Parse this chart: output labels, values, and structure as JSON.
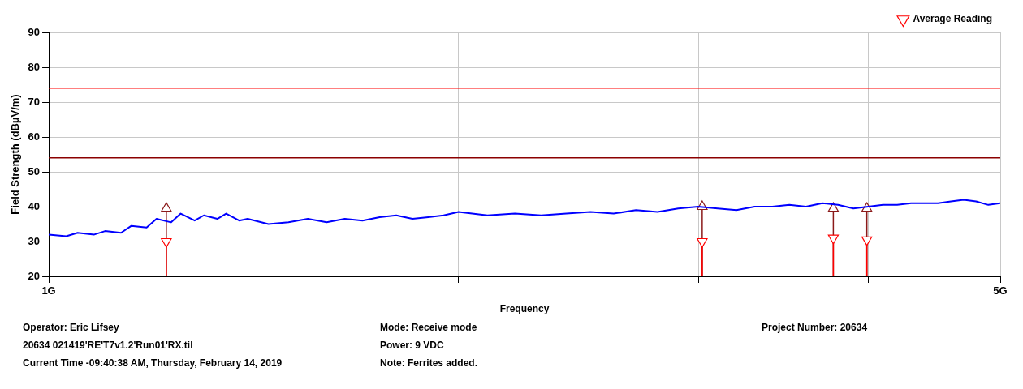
{
  "chart_data": {
    "type": "line",
    "xlabel": "Frequency",
    "ylabel": "Field Strength (dBµV/m)",
    "x": [
      1.0,
      1.03,
      1.05,
      1.08,
      1.1,
      1.13,
      1.15,
      1.18,
      1.2,
      1.23,
      1.25,
      1.28,
      1.3,
      1.33,
      1.35,
      1.38,
      1.4,
      1.45,
      1.5,
      1.55,
      1.6,
      1.65,
      1.7,
      1.75,
      1.8,
      1.85,
      1.9,
      1.95,
      2.0,
      2.1,
      2.2,
      2.3,
      2.4,
      2.5,
      2.6,
      2.7,
      2.8,
      2.9,
      3.0,
      3.1,
      3.2,
      3.3,
      3.4,
      3.5,
      3.6,
      3.7,
      3.8,
      3.9,
      4.0,
      4.1,
      4.2,
      4.3,
      4.4,
      4.5,
      4.6,
      4.7,
      4.8,
      4.9,
      5.0
    ],
    "series": [
      {
        "color": "#0000ff",
        "values": [
          32,
          31.5,
          32.5,
          32,
          33,
          32.5,
          34.5,
          34,
          36.5,
          35.5,
          38,
          36,
          37.5,
          36.5,
          38,
          36,
          36.5,
          35,
          35.5,
          36.5,
          35.5,
          36.5,
          36,
          37,
          37.5,
          36.5,
          37,
          37.5,
          38.5,
          37.5,
          38,
          37.5,
          38,
          38.5,
          38,
          39,
          38.5,
          39.5,
          40,
          39.5,
          39,
          40,
          40,
          40.5,
          40,
          41,
          40.5,
          39.5,
          40,
          40.5,
          40.5,
          41,
          41,
          41,
          41.5,
          42,
          41.5,
          40.5,
          41
        ]
      },
      {
        "type": "lollipop",
        "color": "#8b1a1a",
        "marker": "triangle",
        "x": [
          1.22,
          3.02,
          3.77,
          3.99
        ],
        "values": [
          39.5,
          40,
          39.5,
          39.5
        ]
      },
      {
        "type": "lollipop",
        "name": "Average Reading",
        "color": "#ff0000",
        "marker": "triangle",
        "x": [
          1.22,
          3.02,
          3.77,
          3.99
        ],
        "values": [
          30,
          30,
          31,
          30.5
        ]
      }
    ],
    "xlim": [
      1,
      5
    ],
    "xticks": [
      {
        "value": 1,
        "label": "1G"
      },
      {
        "value": 2,
        "label": null
      },
      {
        "value": 3,
        "label": null
      },
      {
        "value": 4,
        "label": null
      },
      {
        "value": 5,
        "label": "5G"
      }
    ],
    "ylim": [
      20,
      90
    ],
    "yticks": [
      20,
      30,
      40,
      50,
      60,
      70,
      80,
      90
    ],
    "log": "x",
    "grid": true,
    "legend": "top right",
    "ref_lines": [
      {
        "axis": "y",
        "value": 74,
        "color": "#ff0000"
      },
      {
        "axis": "y",
        "value": 54,
        "color": "#8b0000"
      }
    ],
    "annotations": [
      "Operator: Eric Lifsey",
      "20634 021419'RE'T7v1.2'Run01'RX.til",
      "Current Time -09:40:38 AM, Thursday, February 14, 2019",
      "Mode: Receive mode",
      "Power: 9 VDC",
      "Note: Ferrites added.",
      "Project Number: 20634"
    ]
  }
}
